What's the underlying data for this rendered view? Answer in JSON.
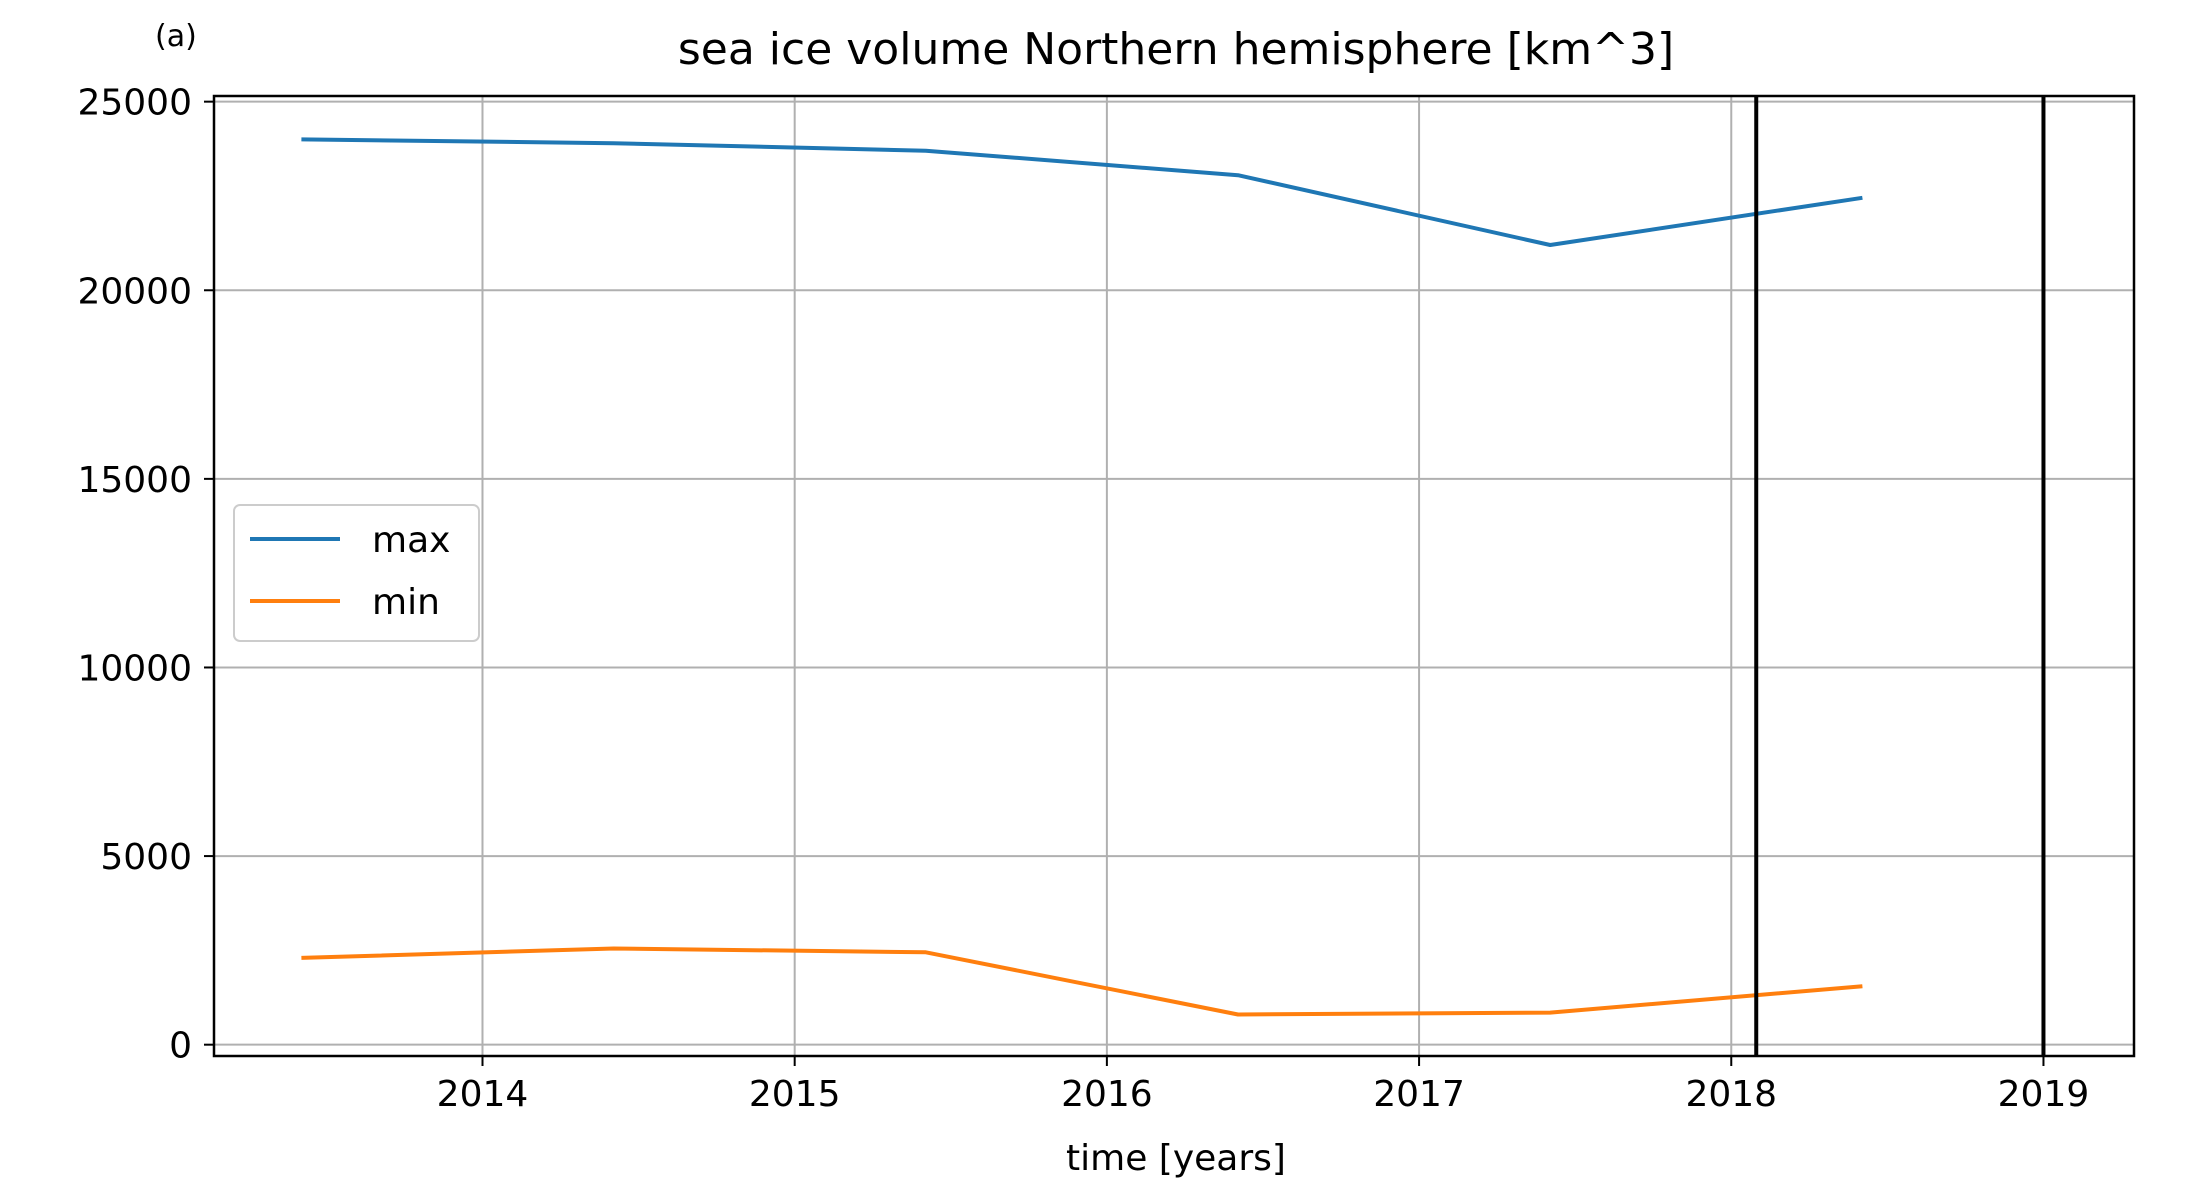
{
  "panel_label": "(a)",
  "chart_data": {
    "type": "line",
    "title": "sea ice volume Northern hemisphere [km^3]",
    "xlabel": "time [years]",
    "ylabel": "",
    "xlim": [
      2013.14,
      2019.29
    ],
    "ylim": [
      -300,
      25150
    ],
    "x_ticks": [
      2014,
      2015,
      2016,
      2017,
      2018,
      2019
    ],
    "y_ticks": [
      0,
      5000,
      10000,
      15000,
      20000,
      25000
    ],
    "grid": true,
    "legend_position": "center-left",
    "x": [
      2013.42,
      2014.42,
      2015.42,
      2016.42,
      2017.42,
      2018.42
    ],
    "series": [
      {
        "name": "max",
        "color": "#1f77b4",
        "values": [
          24000,
          23900,
          23700,
          23050,
          21200,
          22450
        ]
      },
      {
        "name": "min",
        "color": "#ff7f0e",
        "values": [
          2300,
          2550,
          2450,
          800,
          850,
          1550
        ]
      }
    ],
    "vertical_lines": [
      {
        "x": 2018.08,
        "color": "#000000"
      },
      {
        "x": 2019.0,
        "color": "#000000"
      }
    ]
  }
}
